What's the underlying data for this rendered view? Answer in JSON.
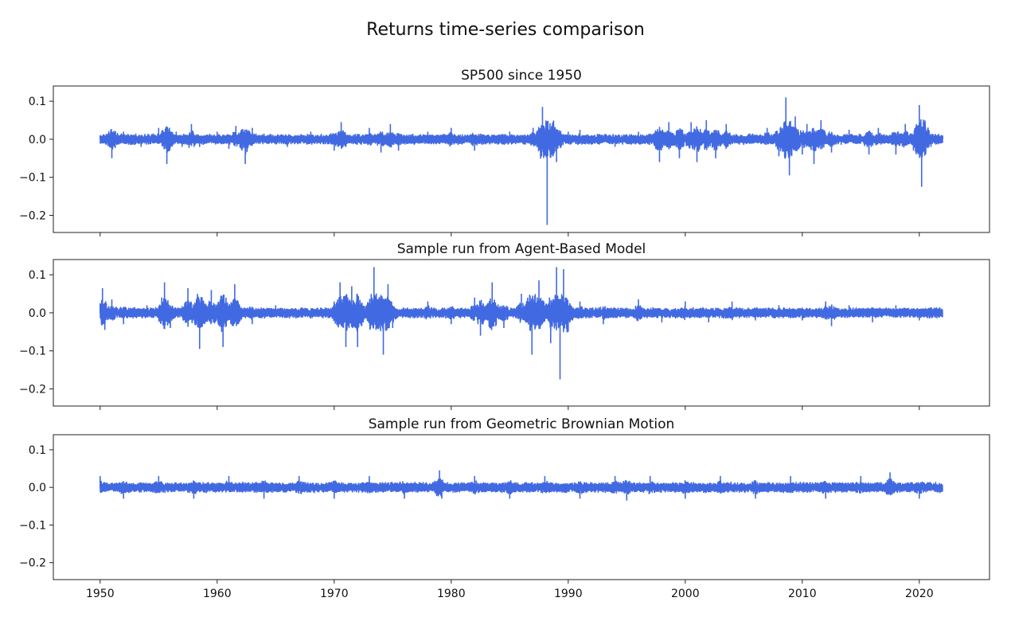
{
  "figure": {
    "title": "Returns time-series comparison"
  },
  "colors": {
    "line": "#4169e1",
    "axis": "#222222",
    "background": "#ffffff"
  },
  "chart_data": [
    {
      "type": "line",
      "title": "SP500 since 1950",
      "xlabel": "",
      "ylabel": "",
      "xlim": [
        1946,
        2026
      ],
      "ylim": [
        -0.245,
        0.14
      ],
      "yticks": [
        0.1,
        0.0,
        -0.1,
        -0.2
      ],
      "ytick_labels": [
        "0.1",
        "0.0",
        "−0.1",
        "−0.2"
      ],
      "xticks": [
        1950,
        1960,
        1970,
        1980,
        1990,
        2000,
        2010,
        2020
      ],
      "xtick_labels": [
        "",
        "",
        "",
        "",
        "",
        "",
        "",
        ""
      ],
      "grid": false,
      "series": [
        {
          "x": [
            1950.0,
            1950.5,
            1951.0,
            1952.0,
            1953.5,
            1955.0,
            1955.7,
            1956.5,
            1957.0,
            1957.8,
            1958.5,
            1960.0,
            1961.0,
            1961.6,
            1962.4,
            1963.0,
            1964.0,
            1966.0,
            1968.0,
            1970.0,
            1970.6,
            1971.0,
            1973.0,
            1974.0,
            1974.8,
            1975.5,
            1978.0,
            1980.0,
            1982.0,
            1985.0,
            1987.0,
            1987.8,
            1988.2,
            1989.0,
            1990.0,
            1991.0,
            1994.0,
            1996.0,
            1997.8,
            1998.6,
            1999.5,
            2000.5,
            2001.0,
            2001.8,
            2002.6,
            2003.5,
            2005.0,
            2007.0,
            2008.0,
            2008.6,
            2008.9,
            2009.4,
            2010.0,
            2010.4,
            2011.0,
            2011.6,
            2012.5,
            2014.0,
            2015.7,
            2016.5,
            2018.0,
            2018.8,
            2019.5,
            2020.0,
            2020.2,
            2020.5,
            2021.0,
            2022.0
          ],
          "y": [
            0.01,
            -0.015,
            -0.05,
            0.02,
            -0.02,
            0.03,
            -0.065,
            0.02,
            -0.02,
            0.04,
            -0.02,
            0.02,
            -0.025,
            0.035,
            -0.065,
            0.03,
            0.015,
            -0.02,
            0.02,
            -0.03,
            0.045,
            -0.02,
            0.03,
            -0.035,
            0.04,
            -0.03,
            0.02,
            0.03,
            -0.03,
            0.02,
            0.03,
            0.085,
            -0.225,
            -0.06,
            0.02,
            0.025,
            -0.02,
            0.02,
            -0.06,
            0.045,
            -0.05,
            0.045,
            -0.06,
            0.05,
            -0.05,
            0.04,
            -0.015,
            0.03,
            -0.045,
            0.11,
            -0.095,
            0.06,
            -0.04,
            0.04,
            -0.065,
            0.05,
            -0.035,
            0.025,
            -0.04,
            0.03,
            -0.04,
            0.04,
            -0.03,
            0.09,
            -0.125,
            0.045,
            -0.02,
            0.01
          ]
        }
      ]
    },
    {
      "type": "line",
      "title": "Sample run from Agent-Based Model",
      "xlabel": "",
      "ylabel": "",
      "xlim": [
        1946,
        2026
      ],
      "ylim": [
        -0.245,
        0.14
      ],
      "yticks": [
        0.1,
        0.0,
        -0.1,
        -0.2
      ],
      "ytick_labels": [
        "0.1",
        "0.0",
        "−0.1",
        "−0.2"
      ],
      "xticks": [
        1950,
        1960,
        1970,
        1980,
        1990,
        2000,
        2010,
        2020
      ],
      "xtick_labels": [
        "",
        "",
        "",
        "",
        "",
        "",
        "",
        ""
      ],
      "grid": false,
      "series": [
        {
          "x": [
            1950.0,
            1950.2,
            1950.4,
            1951.0,
            1952.0,
            1954.0,
            1955.5,
            1956.0,
            1957.5,
            1958.5,
            1959.5,
            1960.5,
            1961.5,
            1963.0,
            1965.0,
            1968.0,
            1970.0,
            1970.5,
            1971.0,
            1971.5,
            1972.0,
            1973.4,
            1974.2,
            1974.6,
            1975.0,
            1978.0,
            1980.0,
            1982.0,
            1982.5,
            1983.5,
            1984.5,
            1986.0,
            1986.9,
            1987.5,
            1988.5,
            1989.0,
            1989.3,
            1989.6,
            1990.0,
            1991.0,
            1993.0,
            1996.0,
            1998.0,
            2000.0,
            2002.0,
            2004.0,
            2006.0,
            2008.0,
            2010.0,
            2012.0,
            2012.5,
            2014.0,
            2016.0,
            2018.0,
            2020.0,
            2022.0
          ],
          "y": [
            0.02,
            0.065,
            -0.045,
            0.035,
            -0.03,
            0.02,
            0.08,
            -0.04,
            0.065,
            -0.095,
            0.06,
            -0.09,
            0.075,
            -0.03,
            0.02,
            -0.015,
            0.03,
            0.08,
            -0.09,
            0.07,
            -0.09,
            0.12,
            -0.11,
            0.075,
            -0.04,
            0.03,
            -0.03,
            0.04,
            -0.06,
            0.08,
            -0.04,
            0.05,
            -0.11,
            0.085,
            -0.08,
            0.12,
            -0.175,
            0.115,
            -0.05,
            0.03,
            -0.03,
            0.035,
            -0.025,
            0.03,
            -0.025,
            0.03,
            -0.02,
            0.02,
            -0.02,
            0.03,
            -0.035,
            0.02,
            -0.025,
            0.02,
            -0.02,
            0.0
          ]
        }
      ]
    },
    {
      "type": "line",
      "title": "Sample run from Geometric Brownian Motion",
      "xlabel": "",
      "ylabel": "",
      "xlim": [
        1946,
        2026
      ],
      "ylim": [
        -0.245,
        0.14
      ],
      "yticks": [
        0.1,
        0.0,
        -0.1,
        -0.2
      ],
      "ytick_labels": [
        "0.1",
        "0.0",
        "−0.1",
        "−0.2"
      ],
      "xticks": [
        1950,
        1960,
        1970,
        1980,
        1990,
        2000,
        2010,
        2020
      ],
      "xtick_labels": [
        "1950",
        "1960",
        "1970",
        "1980",
        "1990",
        "2000",
        "2010",
        "2020"
      ],
      "grid": false,
      "series": [
        {
          "x": [
            1950.0,
            1952.0,
            1955.0,
            1958.0,
            1961.0,
            1964.0,
            1967.0,
            1970.0,
            1973.0,
            1976.0,
            1979.0,
            1979.2,
            1982.0,
            1985.0,
            1988.0,
            1991.0,
            1994.0,
            1995.0,
            1997.0,
            2000.0,
            2003.0,
            2006.0,
            2009.0,
            2012.0,
            2015.0,
            2017.5,
            2020.0,
            2022.0
          ],
          "y": [
            0.03,
            -0.03,
            0.03,
            -0.03,
            0.03,
            -0.03,
            0.03,
            -0.03,
            0.03,
            -0.03,
            0.045,
            -0.03,
            0.03,
            -0.03,
            0.03,
            -0.03,
            0.03,
            -0.035,
            0.03,
            -0.03,
            0.03,
            -0.03,
            0.03,
            -0.03,
            0.03,
            0.04,
            -0.03,
            0.0
          ]
        }
      ]
    }
  ]
}
